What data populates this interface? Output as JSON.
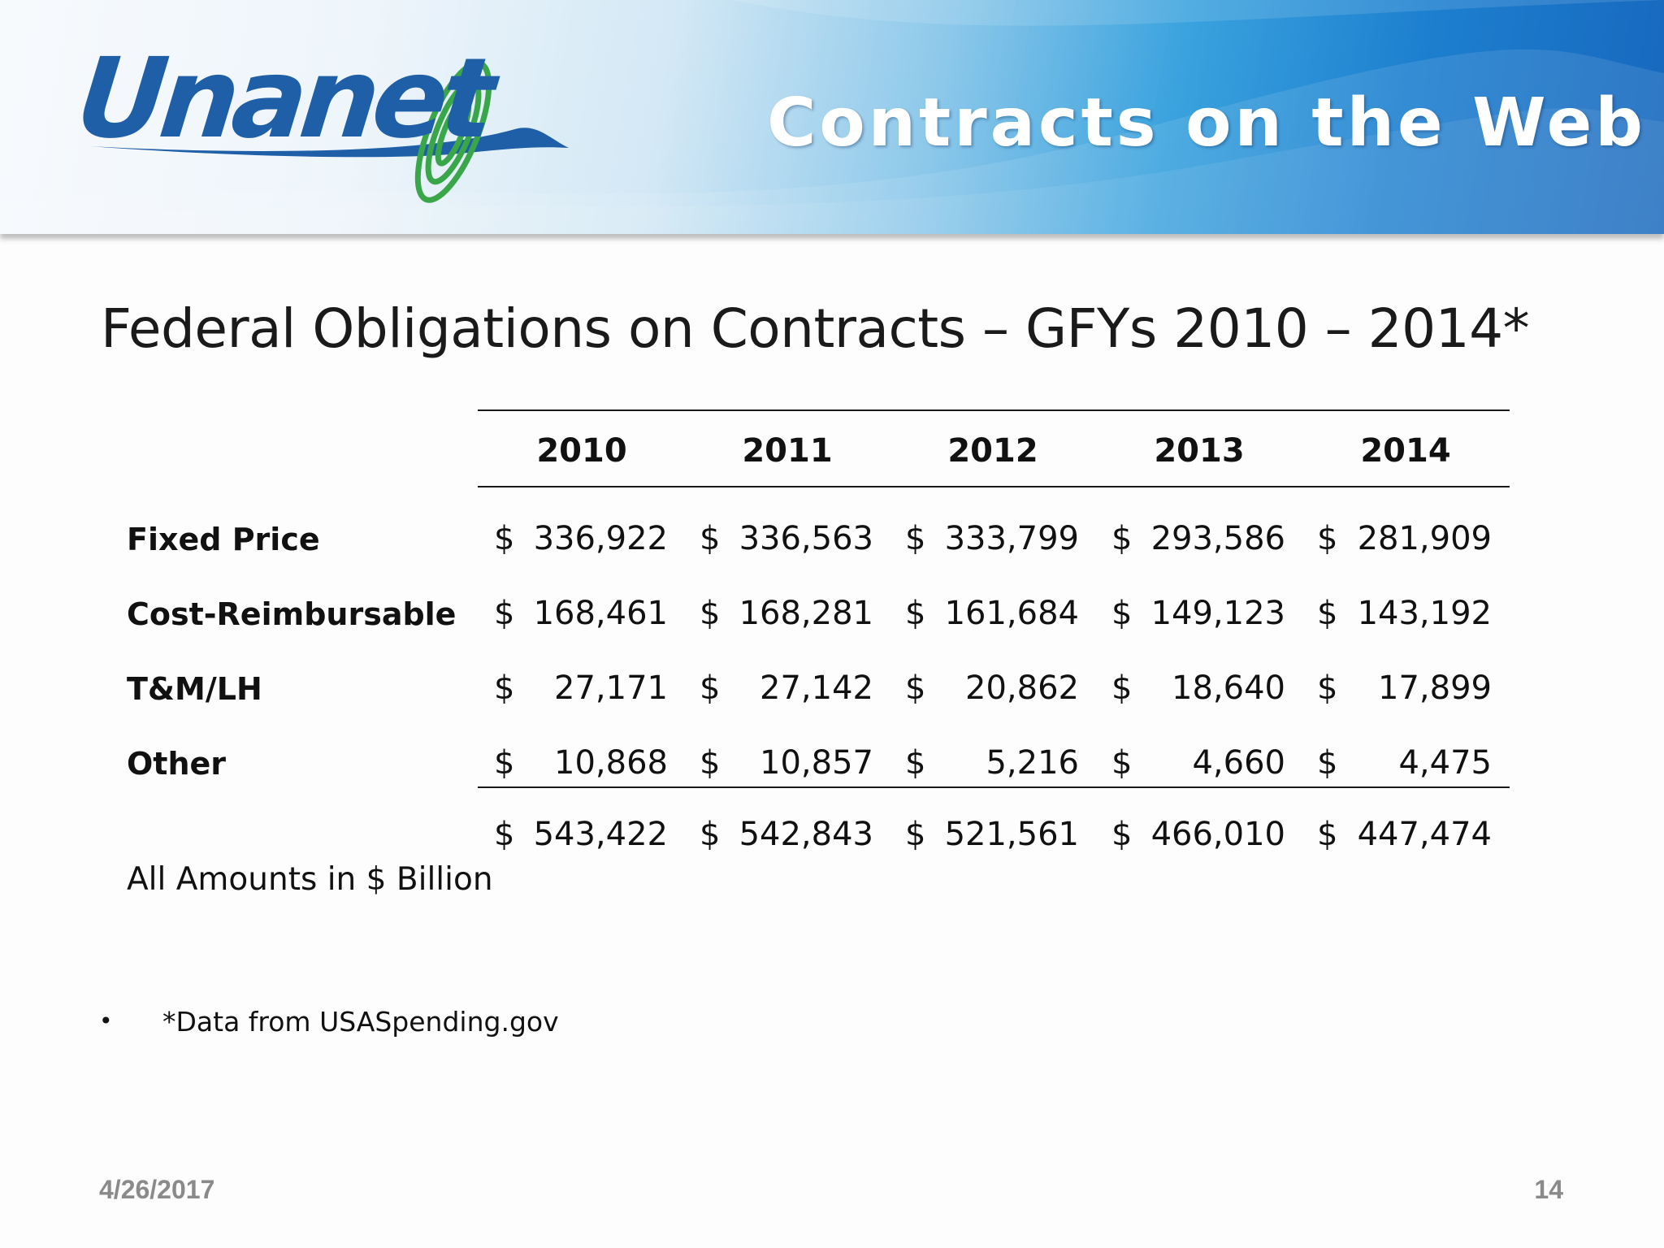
{
  "header": {
    "logo_text": "Unanet",
    "title": "Contracts on the Web"
  },
  "slide": {
    "title": "Federal Obligations on Contracts – GFYs 2010 – 2014*",
    "table": {
      "currency_symbol": "$",
      "years": [
        "2010",
        "2011",
        "2012",
        "2013",
        "2014"
      ],
      "rows": [
        {
          "label": "Fixed Price",
          "values": [
            "336,922",
            "336,563",
            "333,799",
            "293,586",
            "281,909"
          ]
        },
        {
          "label": "Cost-Reimbursable",
          "values": [
            "168,461",
            "168,281",
            "161,684",
            "149,123",
            "143,192"
          ]
        },
        {
          "label": "T&M/LH",
          "values": [
            "27,171",
            "27,142",
            "20,862",
            "18,640",
            "17,899"
          ]
        },
        {
          "label": "Other",
          "values": [
            "10,868",
            "10,857",
            "5,216",
            "4,660",
            "4,475"
          ]
        }
      ],
      "totals": [
        "543,422",
        "542,843",
        "521,561",
        "466,010",
        "447,474"
      ]
    },
    "units_note": "All Amounts in $ Billion",
    "bullet": "•",
    "source_note": "*Data from USASpending.gov"
  },
  "footer": {
    "date": "4/26/2017",
    "page_number": "14"
  },
  "colors": {
    "logo_blue": "#1f5fa8",
    "logo_green": "#3aa64a",
    "banner_blue": "#1767bd",
    "footer_gray": "#8a8a8a"
  }
}
